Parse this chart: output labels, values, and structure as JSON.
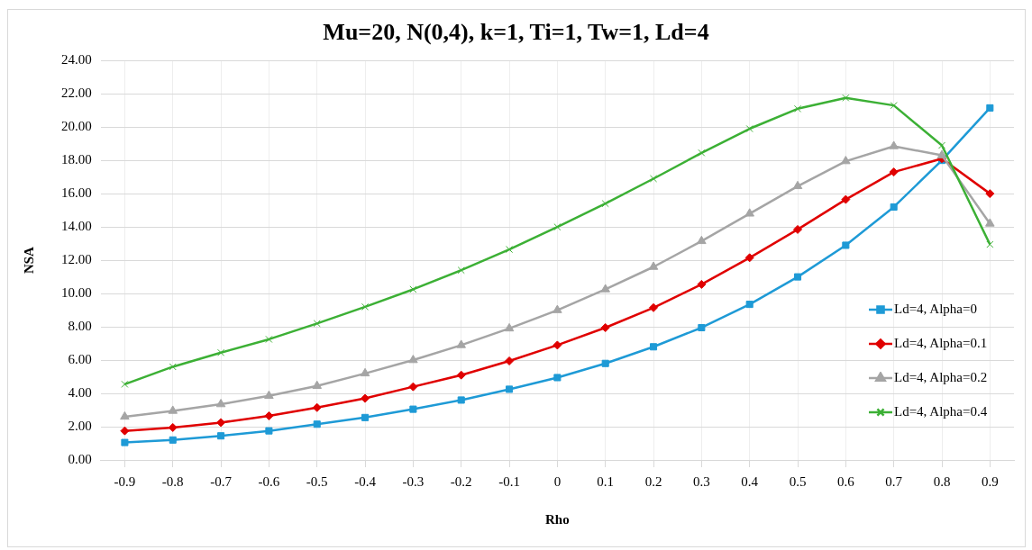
{
  "chart_data": {
    "type": "line",
    "title": "Mu=20, N(0,4), k=1, Ti=1, Tw=1, Ld=4",
    "xlabel": "Rho",
    "ylabel": "NSA",
    "categories": [
      "-0.9",
      "-0.8",
      "-0.7",
      "-0.6",
      "-0.5",
      "-0.4",
      "-0.3",
      "-0.2",
      "-0.1",
      "0",
      "0.1",
      "0.2",
      "0.3",
      "0.4",
      "0.5",
      "0.6",
      "0.7",
      "0.8",
      "0.9"
    ],
    "series": [
      {
        "name": "Ld=4, Alpha=0",
        "color": "#1e9ad6",
        "marker": "square",
        "values": [
          1.05,
          1.2,
          1.45,
          1.75,
          2.15,
          2.55,
          3.05,
          3.6,
          4.25,
          4.95,
          5.8,
          6.8,
          7.95,
          9.35,
          11.0,
          12.9,
          15.2,
          18.0,
          21.15
        ]
      },
      {
        "name": "Ld=4, Alpha=0.1",
        "color": "#e00000",
        "marker": "diamond",
        "values": [
          1.75,
          1.95,
          2.25,
          2.65,
          3.15,
          3.7,
          4.4,
          5.1,
          5.95,
          6.9,
          7.95,
          9.15,
          10.55,
          12.15,
          13.85,
          15.65,
          17.3,
          18.1,
          16.0
        ]
      },
      {
        "name": "Ld=4, Alpha=0.2",
        "color": "#a5a5a5",
        "marker": "triangle",
        "values": [
          2.6,
          2.95,
          3.35,
          3.85,
          4.45,
          5.2,
          6.0,
          6.9,
          7.9,
          9.0,
          10.25,
          11.6,
          13.15,
          14.8,
          16.45,
          17.95,
          18.85,
          18.3,
          14.2
        ]
      },
      {
        "name": "Ld=4, Alpha=0.4",
        "color": "#3cb035",
        "marker": "cross",
        "values": [
          4.55,
          5.6,
          6.45,
          7.25,
          8.2,
          9.2,
          10.25,
          11.4,
          12.65,
          14.0,
          15.4,
          16.9,
          18.45,
          19.9,
          21.1,
          21.75,
          21.3,
          18.9,
          12.95
        ]
      }
    ],
    "ylim": [
      0,
      24
    ],
    "yticks": [
      {
        "value": 0,
        "label": "0.00"
      },
      {
        "value": 2,
        "label": "2.00"
      },
      {
        "value": 4,
        "label": "4.00"
      },
      {
        "value": 6,
        "label": "6.00"
      },
      {
        "value": 8,
        "label": "8.00"
      },
      {
        "value": 10,
        "label": "10.00"
      },
      {
        "value": 12,
        "label": "12.00"
      },
      {
        "value": 14,
        "label": "14.00"
      },
      {
        "value": 16,
        "label": "16.00"
      },
      {
        "value": 18,
        "label": "18.00"
      },
      {
        "value": 20,
        "label": "20.00"
      },
      {
        "value": 22,
        "label": "22.00"
      },
      {
        "value": 24,
        "label": "24.00"
      }
    ],
    "grid": true,
    "legend": "right",
    "line_style": "solid"
  }
}
